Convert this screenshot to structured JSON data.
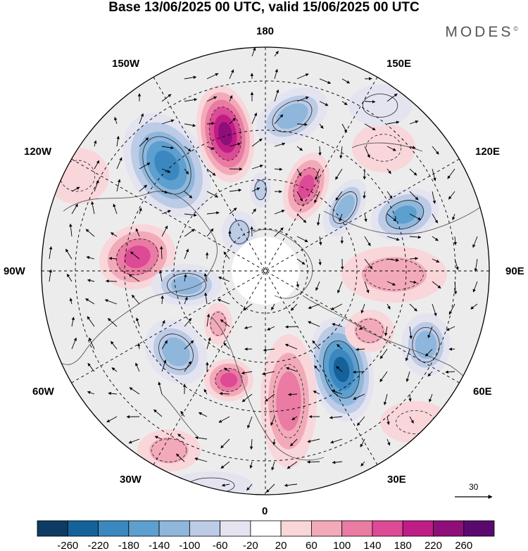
{
  "title": "Base 13/06/2025 00 UTC, valid 15/06/2025 00 UTC",
  "brand": "MODES",
  "brand_mark": "©",
  "longitude_labels": {
    "n180": "180",
    "lon150w": "150W",
    "lon150e": "150E",
    "lon120w": "120W",
    "lon120e": "120E",
    "lon90w": "90W",
    "lon90e": "90E",
    "lon60w": "60W",
    "lon60e": "60E",
    "lon30w": "30W",
    "lon30e": "30E",
    "lon0": "0"
  },
  "reference_vector_label": "30",
  "colorbar": {
    "ticks": [
      "-260",
      "-220",
      "-180",
      "-140",
      "-100",
      "-60",
      "-20",
      "20",
      "60",
      "100",
      "140",
      "180",
      "220",
      "260"
    ],
    "colors": [
      "#0d3b63",
      "#15629a",
      "#3a88bf",
      "#5d9fcf",
      "#8fb7dc",
      "#bccbe6",
      "#e4e4f1",
      "#ffffff",
      "#f9d6da",
      "#f2aab9",
      "#ea7ba3",
      "#dd4a95",
      "#bf1d86",
      "#8e0f7a",
      "#5a0a6e"
    ]
  },
  "anomaly_field": {
    "land_fill": "#ebebeb",
    "negative_color": "#15629a",
    "positive_color": "#bf1d86"
  }
}
